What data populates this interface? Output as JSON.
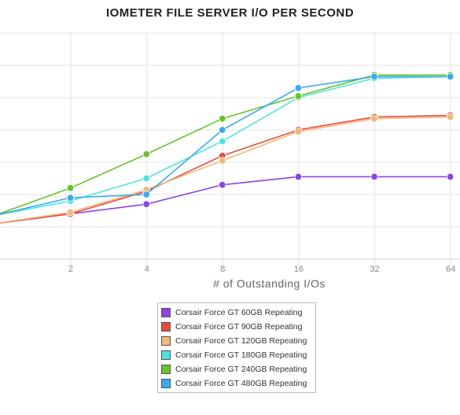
{
  "chart_data": {
    "type": "line",
    "title": "IOMETER FILE SERVER I/O PER SECOND",
    "xlabel": "# of Outstanding I/Os",
    "ylabel": "",
    "x": [
      1,
      2,
      4,
      8,
      16,
      32,
      64
    ],
    "x_tick_labels": [
      "2",
      "4",
      "8",
      "16",
      "32",
      "64"
    ],
    "x_scale": "log2",
    "y_scale": "gridlines only, no tick labels shown",
    "grid": true,
    "legend_placement": "bottom-center",
    "series": [
      {
        "name": "Corsair Force GT 60GB Repeating",
        "color": "#8e44e0",
        "values": [
          1.1,
          1.4,
          1.7,
          2.3,
          2.55,
          2.55,
          2.55
        ]
      },
      {
        "name": "Corsair Force GT 90GB Repeating",
        "color": "#e74c3c",
        "values": [
          1.1,
          1.4,
          2.1,
          3.2,
          4.0,
          4.4,
          4.45
        ]
      },
      {
        "name": "Corsair Force GT 120GB Repeating",
        "color": "#f0b87a",
        "values": [
          1.1,
          1.45,
          2.15,
          3.05,
          3.95,
          4.35,
          4.4
        ]
      },
      {
        "name": "Corsair Force GT 180GB Repeating",
        "color": "#4fe3da",
        "values": [
          1.35,
          1.8,
          2.5,
          3.65,
          5.0,
          5.6,
          5.65
        ]
      },
      {
        "name": "Corsair Force GT 240GB Repeating",
        "color": "#6ac22c",
        "values": [
          1.35,
          2.2,
          3.25,
          4.35,
          5.05,
          5.7,
          5.7
        ]
      },
      {
        "name": "Corsair Force GT 480GB Repeating",
        "color": "#3aaaf0",
        "values": [
          1.35,
          1.9,
          2.0,
          4.0,
          5.3,
          5.65,
          5.65
        ]
      }
    ]
  }
}
